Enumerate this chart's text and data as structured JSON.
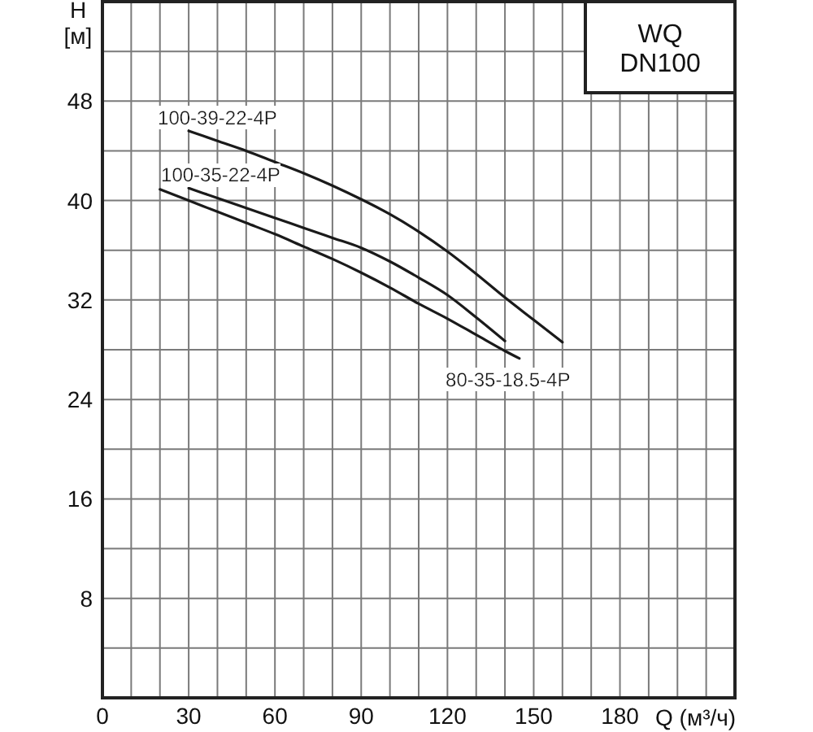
{
  "chart_data": {
    "type": "line",
    "title": "WQ",
    "subtitle": "DN100",
    "xlabel": "Q (м³/ч)",
    "ylabel": "H [м]",
    "xlim": [
      0,
      220
    ],
    "xticks": [
      0,
      {
        "value": 10,
        "label": null
      },
      {
        "value": 20,
        "label": null
      },
      30,
      {
        "value": 40,
        "label": null
      },
      {
        "value": 50,
        "label": null
      },
      60,
      {
        "value": 70,
        "label": null
      },
      {
        "value": 80,
        "label": null
      },
      90,
      {
        "value": 100,
        "label": null
      },
      {
        "value": 110,
        "label": null
      },
      120,
      {
        "value": 130,
        "label": null
      },
      {
        "value": 140,
        "label": null
      },
      150,
      {
        "value": 160,
        "label": null
      },
      {
        "value": 170,
        "label": null
      },
      180,
      {
        "value": 190,
        "label": null
      },
      {
        "value": 200,
        "label": null
      },
      {
        "value": 210,
        "label": null
      }
    ],
    "ylim": [
      0,
      56
    ],
    "yticks": [
      {
        "value": 0,
        "label": null
      },
      {
        "value": 4,
        "label": null
      },
      8,
      {
        "value": 12,
        "label": null
      },
      16,
      {
        "value": 20,
        "label": null
      },
      24,
      {
        "value": 28,
        "label": null
      },
      32,
      {
        "value": 36,
        "label": null
      },
      40,
      {
        "value": 44,
        "label": null
      },
      48,
      {
        "value": 52,
        "label": null
      }
    ],
    "grid": true,
    "marker": "none",
    "line_style": "solid",
    "series": [
      {
        "name": "100-39-22-4P",
        "color": "#1a1a1a",
        "x": [
          30,
          40,
          50,
          60,
          70,
          80,
          90,
          100,
          110,
          120,
          130,
          140,
          150,
          160
        ],
        "values": [
          45.6,
          44.8,
          44.0,
          43.1,
          42.2,
          41.2,
          40.1,
          38.9,
          37.5,
          35.9,
          34.1,
          32.2,
          30.4,
          28.6
        ]
      },
      {
        "name": "100-35-22-4P",
        "color": "#1a1a1a",
        "x": [
          30,
          40,
          50,
          60,
          70,
          80,
          90,
          100,
          110,
          120,
          130,
          140
        ],
        "values": [
          41.0,
          40.2,
          39.4,
          38.6,
          37.8,
          37.0,
          36.2,
          35.1,
          33.8,
          32.4,
          30.6,
          28.7
        ]
      },
      {
        "name": "80-35-18.5-4P",
        "color": "#1a1a1a",
        "x": [
          20,
          30,
          40,
          50,
          60,
          70,
          80,
          90,
          100,
          110,
          120,
          130,
          140,
          145
        ],
        "values": [
          40.9,
          40.0,
          39.1,
          38.2,
          37.3,
          36.3,
          35.3,
          34.2,
          33.0,
          31.7,
          30.5,
          29.2,
          27.9,
          27.3
        ]
      }
    ]
  }
}
